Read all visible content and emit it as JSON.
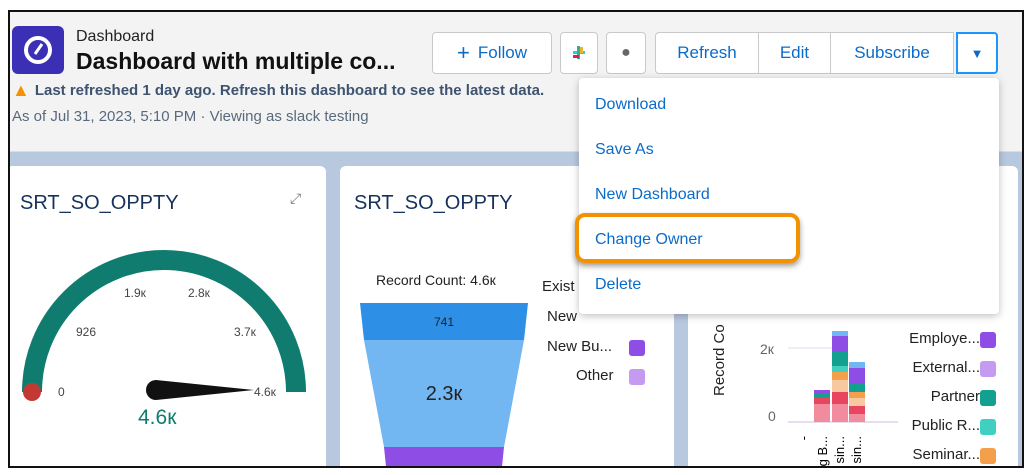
{
  "header": {
    "breadcrumb": "Dashboard",
    "title": "Dashboard with multiple co...",
    "warning": "Last refreshed 1 day ago. Refresh this dashboard to see the latest data.",
    "as_of": "As of Jul 31, 2023, 5:10 PM · Viewing as slack testing"
  },
  "toolbar": {
    "follow": "Follow",
    "refresh": "Refresh",
    "edit": "Edit",
    "subscribe": "Subscribe"
  },
  "menu": {
    "items": [
      "Download",
      "Save As",
      "New Dashboard",
      "Change Owner",
      "Delete"
    ],
    "highlighted": "Change Owner"
  },
  "gauge": {
    "title": "SRT_SO_OPPTY",
    "ticks": [
      "0",
      "926",
      "1.9к",
      "2.8к",
      "3.7к",
      "4.6к"
    ],
    "value": "4.6к",
    "color": "#0f7c6f"
  },
  "funnel": {
    "title": "SRT_SO_OPPTY",
    "record_count": "Record Count: 4.6к",
    "stages": [
      "741",
      "2.3к"
    ],
    "legend": [
      "Exist",
      "New",
      "New Bu...",
      "Other"
    ],
    "legend_colors": [
      "",
      "",
      "#8e4ee6",
      "#c49bf0"
    ]
  },
  "bar": {
    "ylabel": "Record Co",
    "yticks": [
      "2к",
      "0"
    ],
    "xlabels": [
      "-",
      "g B...",
      "sin...",
      "sin..."
    ],
    "legend": [
      "Employe...",
      "External...",
      "Partner",
      "Public R...",
      "Seminar..."
    ],
    "legend_colors": [
      "#8e4ee6",
      "#c49bf0",
      "#13a08f",
      "#3fd0c2",
      "#f4a04b"
    ]
  }
}
